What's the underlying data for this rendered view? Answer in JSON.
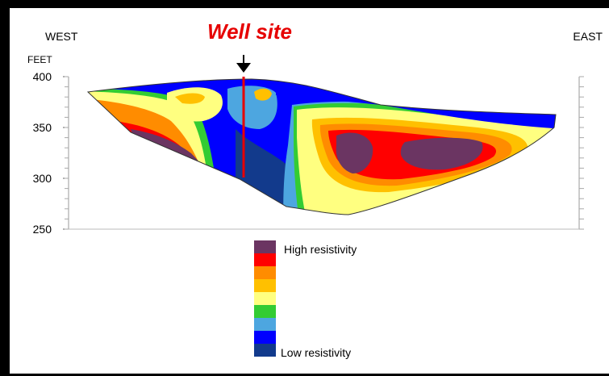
{
  "labels": {
    "west": "WEST",
    "east": "EAST",
    "units": "FEET",
    "well_site": "Well site"
  },
  "y_axis": {
    "ticks": [
      "400",
      "350",
      "300",
      "250"
    ],
    "range": [
      250,
      400
    ]
  },
  "legend": {
    "high": "High resistivity",
    "low": "Low resistivity",
    "scale_colors": [
      "#6b3562",
      "#ff0000",
      "#ff8c00",
      "#ffc000",
      "#ffff80",
      "#33cc33",
      "#4da6e0",
      "#0000ff",
      "#123a8c"
    ]
  },
  "colors": {
    "well_marker": "#e60000",
    "background": "#ffffff"
  }
}
